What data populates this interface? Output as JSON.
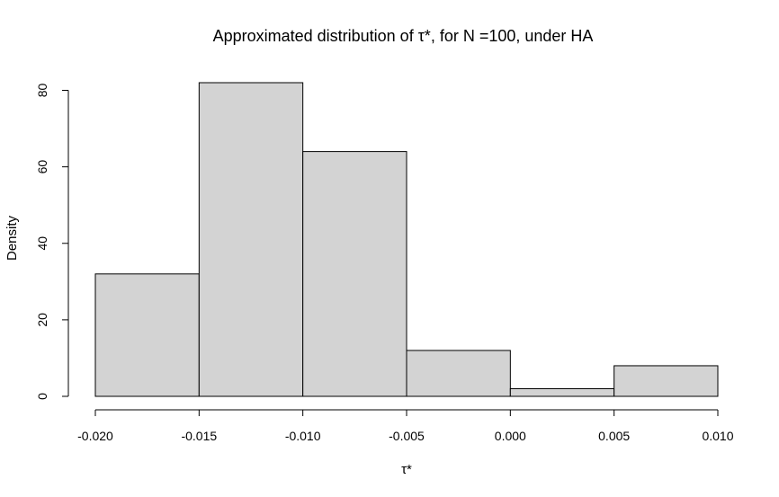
{
  "chart_data": {
    "type": "histogram",
    "title": "Approximated distribution of τ*, for N =100, under HA",
    "xlabel": "τ*",
    "ylabel": "Density",
    "bins": [
      {
        "x0": -0.02,
        "x1": -0.015,
        "density": 32
      },
      {
        "x0": -0.015,
        "x1": -0.01,
        "density": 82
      },
      {
        "x0": -0.01,
        "x1": -0.005,
        "density": 64
      },
      {
        "x0": -0.005,
        "x1": 0.0,
        "density": 12
      },
      {
        "x0": 0.0,
        "x1": 0.005,
        "density": 2
      },
      {
        "x0": 0.005,
        "x1": 0.01,
        "density": 8
      }
    ],
    "xlim": [
      -0.02,
      0.01
    ],
    "ylim": [
      0,
      82
    ],
    "x_ticks": [
      -0.02,
      -0.015,
      -0.01,
      -0.005,
      0.0,
      0.005,
      0.01
    ],
    "x_tick_labels": [
      "-0.020",
      "-0.015",
      "-0.010",
      "-0.005",
      "0.000",
      "0.005",
      "0.010"
    ],
    "y_ticks": [
      0,
      20,
      40,
      60,
      80
    ],
    "y_tick_labels": [
      "0",
      "20",
      "40",
      "60",
      "80"
    ],
    "bar_fill": "#d3d3d3",
    "bar_stroke": "#000000",
    "grid": false,
    "legend": "none"
  }
}
